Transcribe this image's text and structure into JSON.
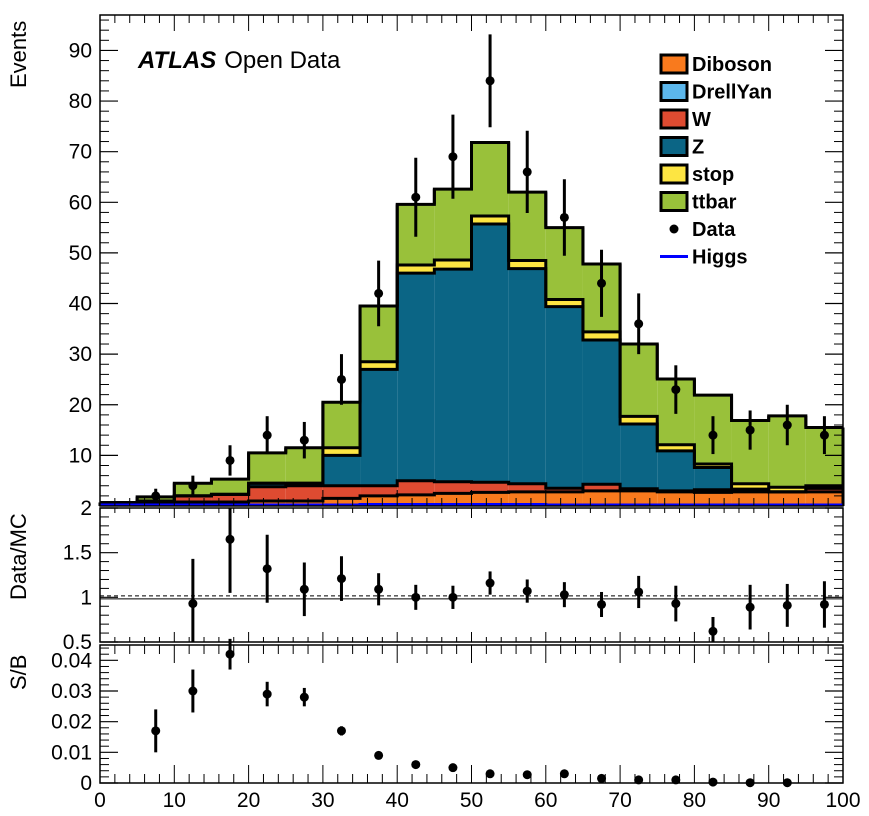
{
  "figure_label": "ATLAS Open Data",
  "atlas_bold": "ATLAS",
  "atlas_rest": "Open Data",
  "colors": {
    "Diboson": "#f97a1d",
    "DrellYan": "#5cb7ec",
    "W": "#de4b31",
    "Z": "#0b6585",
    "stop": "#fde542",
    "ttbar": "#99c13a",
    "Data": "#000000",
    "Higgs": "#0000ff"
  },
  "chart_data": [
    {
      "type": "bar",
      "stacked": true,
      "ylabel": "Events",
      "xlim": [
        0,
        100
      ],
      "ylim": [
        0,
        97
      ],
      "bin_edges": [
        0,
        5,
        10,
        15,
        20,
        25,
        30,
        35,
        40,
        45,
        50,
        55,
        60,
        65,
        70,
        75,
        80,
        85,
        90,
        95,
        100
      ],
      "series": [
        {
          "name": "Diboson",
          "values": [
            0.2,
            0.5,
            0.8,
            0.8,
            1,
            1,
            1.5,
            2,
            2.2,
            2.5,
            2.7,
            2.8,
            2.8,
            3,
            3,
            2.8,
            2.7,
            2.8,
            2.8,
            2.8
          ]
        },
        {
          "name": "DrellYan",
          "values": [
            0,
            0,
            0,
            0,
            0,
            0,
            0,
            0,
            0,
            0,
            0,
            0,
            0,
            0,
            0,
            0,
            0,
            0,
            0,
            0
          ]
        },
        {
          "name": "W",
          "values": [
            0.3,
            0.5,
            1.2,
            1.5,
            2.8,
            3,
            2.5,
            2,
            2.8,
            2.3,
            2,
            1.6,
            0.7,
            1.3,
            0.4,
            0.2,
            0.5,
            0.5,
            0,
            0.7
          ]
        },
        {
          "name": "Z",
          "values": [
            0,
            0,
            0,
            0,
            0.7,
            0.5,
            6,
            23,
            41,
            42,
            51,
            42.5,
            35.9,
            28.5,
            12.8,
            7.9,
            4.4,
            0,
            0,
            0
          ]
        },
        {
          "name": "stop",
          "values": [
            0,
            0,
            0,
            0,
            0,
            0,
            1.5,
            1.5,
            1.6,
            1.8,
            1.6,
            1.6,
            1.4,
            1.6,
            1.5,
            1.2,
            0.7,
            1.1,
            0.9,
            0.5
          ]
        },
        {
          "name": "ttbar",
          "values": [
            0.2,
            0.8,
            2.5,
            3,
            6,
            7,
            9,
            11,
            12,
            14,
            14.5,
            13.5,
            14.2,
            13.4,
            14.3,
            13,
            13.6,
            12.5,
            14.1,
            11.5
          ]
        }
      ],
      "data_series": {
        "name": "Data",
        "x": [
          7.5,
          12.5,
          17.5,
          22.5,
          27.5,
          32.5,
          37.5,
          42.5,
          47.5,
          52.5,
          57.5,
          62.5,
          67.5,
          72.5,
          77.5,
          82.5,
          87.5,
          92.5,
          97.5
        ],
        "y": [
          2,
          4,
          9,
          14,
          13,
          25,
          42,
          61,
          69,
          84,
          66,
          57,
          44,
          36,
          23,
          14,
          15,
          16,
          14
        ]
      },
      "higgs": {
        "name": "Higgs",
        "values": [
          0.2,
          0.2,
          0.2,
          0.2,
          0.2,
          0.2,
          0.2,
          0.3,
          0.3,
          0.3,
          0.3,
          0.3,
          0.2,
          0.2,
          0.2,
          0.2,
          0.2,
          0.2,
          0.2,
          0.2
        ]
      },
      "yticks": [
        10,
        20,
        30,
        40,
        50,
        60,
        70,
        80,
        90
      ],
      "legend_position": "top-right"
    },
    {
      "type": "scatter",
      "ylabel": "Data/MC",
      "xlim": [
        0,
        100
      ],
      "ylim": [
        0.5,
        2
      ],
      "x": [
        12.5,
        17.5,
        22.5,
        27.5,
        32.5,
        37.5,
        42.5,
        47.5,
        52.5,
        57.5,
        62.5,
        67.5,
        72.5,
        77.5,
        82.5,
        87.5,
        92.5,
        97.5
      ],
      "y": [
        0.93,
        1.65,
        1.32,
        1.09,
        1.21,
        1.09,
        1.0,
        1.0,
        1.16,
        1.07,
        1.03,
        0.92,
        1.06,
        0.93,
        0.62,
        0.89,
        0.91,
        0.92
      ],
      "yerr": [
        0.5,
        0.6,
        0.38,
        0.3,
        0.25,
        0.18,
        0.14,
        0.13,
        0.13,
        0.13,
        0.14,
        0.14,
        0.18,
        0.2,
        0.16,
        0.25,
        0.24,
        0.26
      ],
      "yticks": [
        0.5,
        1,
        1.5,
        2
      ],
      "ytick_labels": [
        "0.5",
        "1",
        "1.5",
        "2"
      ],
      "reference_line": 1
    },
    {
      "type": "scatter",
      "ylabel": "S/B",
      "xlim": [
        0,
        100
      ],
      "ylim": [
        0,
        0.045
      ],
      "x": [
        7.5,
        12.5,
        17.5,
        22.5,
        27.5,
        32.5,
        37.5,
        42.5,
        47.5,
        52.5,
        57.5,
        62.5,
        67.5,
        72.5,
        77.5,
        82.5,
        87.5,
        92.5
      ],
      "y": [
        0.017,
        0.03,
        0.042,
        0.029,
        0.028,
        0.017,
        0.009,
        0.006,
        0.005,
        0.003,
        0.0027,
        0.003,
        0.0015,
        0.001,
        0.001,
        0.0003,
        0.0001,
        0.0001
      ],
      "yerr": [
        0.007,
        0.007,
        0.005,
        0.004,
        0.003,
        0.0015,
        0,
        0,
        0,
        0,
        0,
        0,
        0,
        0,
        0,
        0,
        0,
        0
      ],
      "yticks": [
        0,
        0.01,
        0.02,
        0.03,
        0.04
      ],
      "ytick_labels": [
        "0",
        "0.01",
        "0.02",
        "0.03",
        "0.04"
      ],
      "xticks": [
        0,
        10,
        20,
        30,
        40,
        50,
        60,
        70,
        80,
        90,
        100
      ],
      "xtick_labels": [
        "0",
        "10",
        "20",
        "30",
        "40",
        "50",
        "60",
        "70",
        "80",
        "90",
        "100"
      ]
    }
  ]
}
